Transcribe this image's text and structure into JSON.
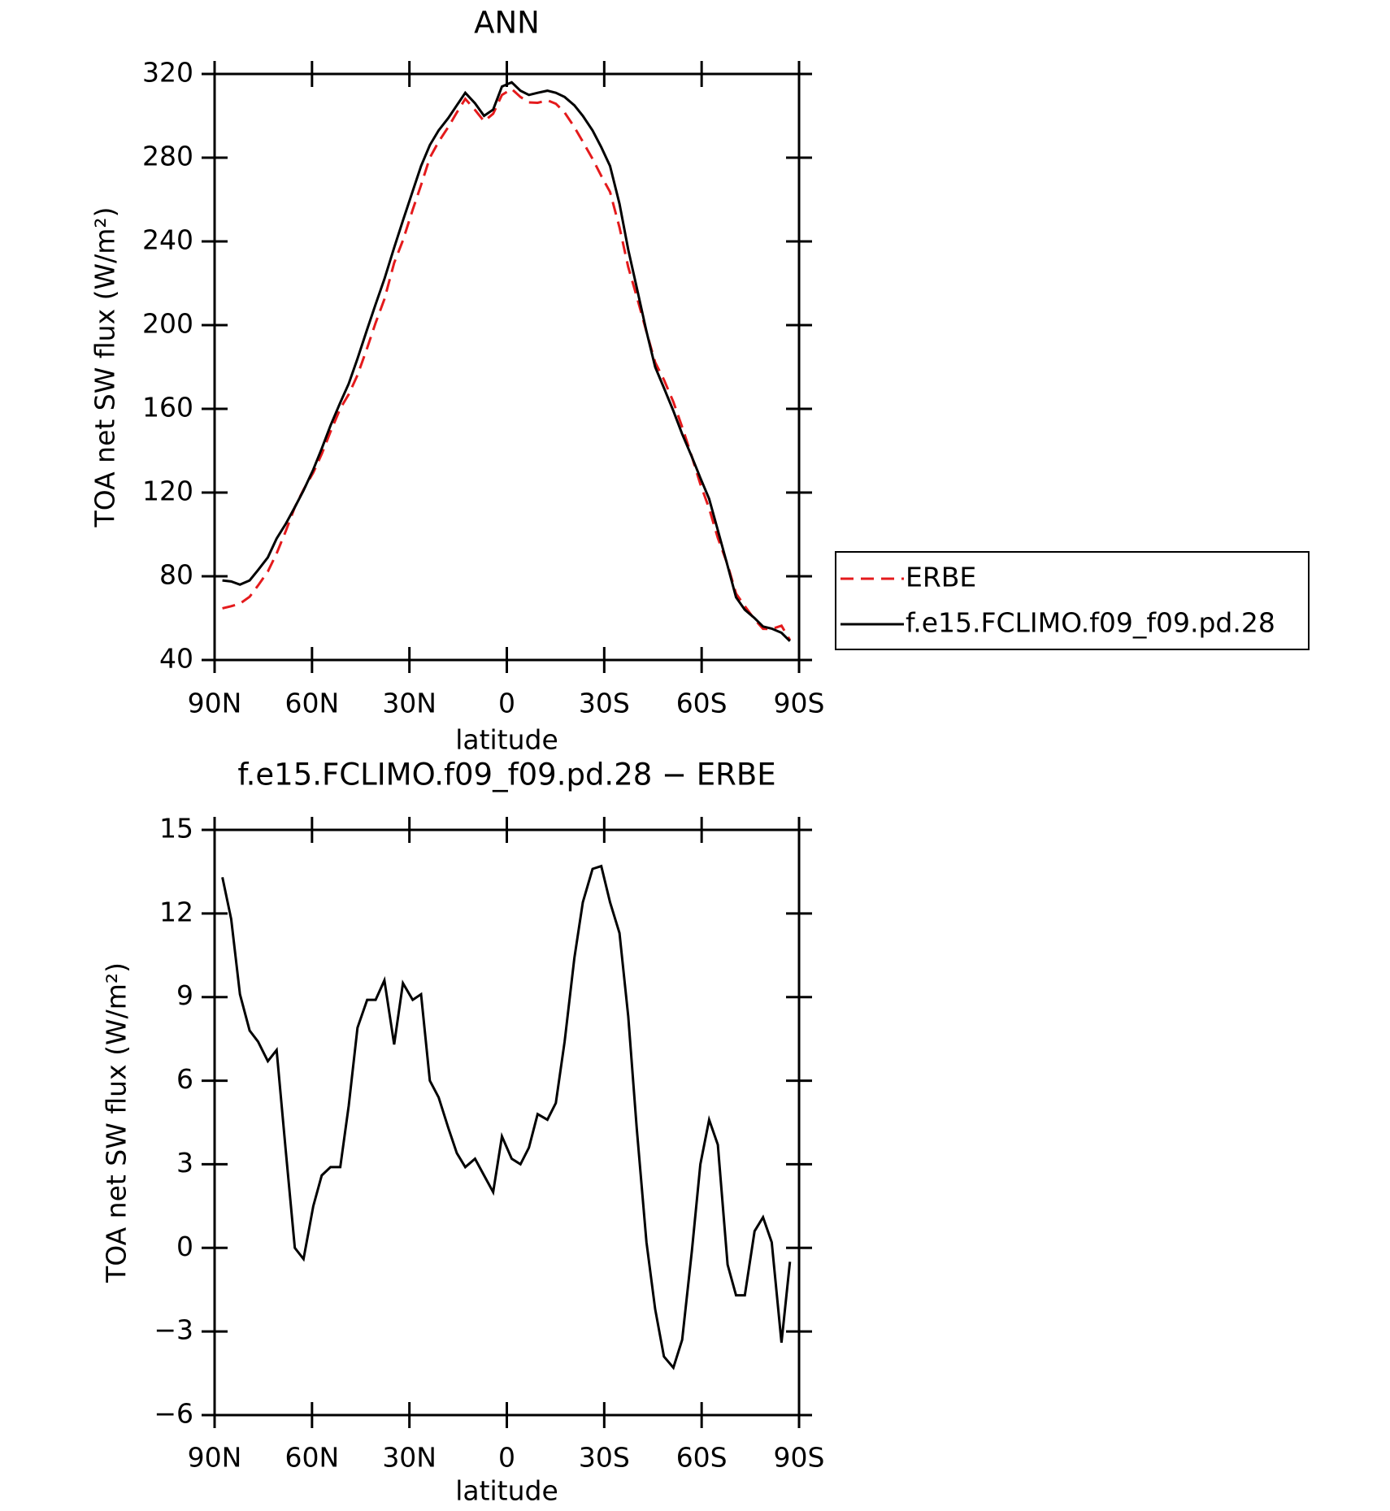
{
  "chart_data": [
    {
      "type": "line",
      "title": "ANN",
      "x": [
        87.6,
        84.9,
        82.2,
        79.2,
        76.6,
        73.6,
        70.9,
        68.1,
        65.3,
        62.6,
        59.6,
        57,
        54.3,
        51.3,
        48.7,
        46,
        43,
        40.4,
        37.7,
        34.7,
        32,
        29,
        26.4,
        23.7,
        21,
        18,
        15.4,
        12.8,
        9.8,
        7,
        4.2,
        1.5,
        -1.5,
        -4.2,
        -6.8,
        -9.5,
        -12.5,
        -15.1,
        -17.8,
        -20.8,
        -23.4,
        -26.4,
        -29.1,
        -31.8,
        -34.7,
        -37.4,
        -40,
        -43,
        -45.7,
        -48.4,
        -51.3,
        -54,
        -57,
        -59.6,
        -62.3,
        -65,
        -68,
        -70.6,
        -73.3,
        -76.3,
        -78.9,
        -81.6,
        -84.6,
        -87.2
      ],
      "series": [
        {
          "name": "ERBE",
          "color": "#e41a1c",
          "linestyle": "dashed",
          "values": [
            64.7,
            65.7,
            66.9,
            70.2,
            75.6,
            82.3,
            90.9,
            101.5,
            113,
            121.4,
            129.5,
            138.4,
            149.1,
            160.1,
            166.9,
            176.1,
            189.1,
            201.1,
            212.4,
            229.7,
            240.5,
            255.1,
            266.9,
            280,
            287.6,
            294.7,
            301.6,
            308.1,
            302.8,
            297.4,
            301,
            310,
            312.8,
            309,
            306.4,
            306.2,
            307.4,
            305.8,
            301.6,
            294.6,
            287.6,
            279.4,
            271.3,
            263.6,
            246.7,
            227.7,
            213.7,
            196.8,
            182.2,
            173.9,
            163.3,
            151.3,
            137.1,
            124,
            112.4,
            98.3,
            85.6,
            71.7,
            65.7,
            59.4,
            54.9,
            54.8,
            56.4,
            49.5
          ]
        },
        {
          "name": "f.e15.FCLIMO.f09_f09.pd.28",
          "color": "#000000",
          "linestyle": "solid",
          "values": [
            78,
            77.5,
            76,
            78,
            83,
            89,
            98,
            105,
            113,
            121,
            131,
            141,
            152,
            163,
            172,
            184,
            198,
            210,
            222,
            237,
            250,
            264,
            276,
            286,
            293,
            299,
            305,
            311,
            306,
            300,
            303,
            314,
            316,
            312,
            310,
            311,
            312,
            311,
            309,
            305,
            300,
            293,
            285,
            276,
            258,
            236,
            218,
            197,
            180,
            170,
            159,
            148,
            137,
            127,
            117,
            102,
            85,
            70,
            64,
            60,
            56,
            55,
            53,
            49
          ]
        }
      ],
      "xlim": [
        90,
        -90
      ],
      "xticks": [
        {
          "value": 90,
          "label": "90N"
        },
        {
          "value": 60,
          "label": "60N"
        },
        {
          "value": 30,
          "label": "30N"
        },
        0,
        {
          "value": -30,
          "label": "30S"
        },
        {
          "value": -60,
          "label": "60S"
        },
        {
          "value": -90,
          "label": "90S"
        }
      ],
      "ylim": [
        40,
        320
      ],
      "yticks": [
        40,
        80,
        120,
        160,
        200,
        240,
        280,
        320
      ],
      "xlabel": "latitude",
      "ylabel": "TOA net SW flux (W/m²)",
      "legend": "right"
    },
    {
      "type": "line",
      "title": "f.e15.FCLIMO.f09_f09.pd.28 − ERBE",
      "x": [
        87.6,
        84.9,
        82.2,
        79.2,
        76.6,
        73.6,
        70.9,
        68.1,
        65.3,
        62.6,
        59.6,
        57,
        54.3,
        51.3,
        48.7,
        46,
        43,
        40.4,
        37.7,
        34.7,
        32,
        29,
        26.4,
        23.7,
        21,
        18,
        15.4,
        12.8,
        9.8,
        7,
        4.2,
        1.5,
        -1.5,
        -4.2,
        -6.8,
        -9.5,
        -12.5,
        -15.1,
        -17.8,
        -20.8,
        -23.4,
        -26.4,
        -29.1,
        -31.8,
        -34.7,
        -37.4,
        -40,
        -43,
        -45.7,
        -48.4,
        -51.3,
        -54,
        -57,
        -59.6,
        -62.3,
        -65,
        -68,
        -70.6,
        -73.3,
        -76.3,
        -78.9,
        -81.6,
        -84.6,
        -87.2
      ],
      "values": [
        13.3,
        11.8,
        9.1,
        7.8,
        7.4,
        6.7,
        7.1,
        3.5,
        0,
        -0.4,
        1.5,
        2.6,
        2.9,
        2.9,
        5.1,
        7.9,
        8.9,
        8.9,
        9.6,
        7.3,
        9.5,
        8.9,
        9.1,
        6.0,
        5.4,
        4.3,
        3.4,
        2.9,
        3.2,
        2.6,
        2.0,
        4.0,
        3.2,
        3.0,
        3.6,
        4.8,
        4.6,
        5.2,
        7.4,
        10.4,
        12.4,
        13.6,
        13.7,
        12.4,
        11.3,
        8.3,
        4.3,
        0.2,
        -2.2,
        -3.9,
        -4.3,
        -3.3,
        -0.1,
        3.0,
        4.6,
        3.7,
        -0.6,
        -1.7,
        -1.7,
        0.6,
        1.1,
        0.2,
        -3.4,
        -0.5
      ],
      "color": "#000000",
      "xlim": [
        90,
        -90
      ],
      "xticks": [
        {
          "value": 90,
          "label": "90N"
        },
        {
          "value": 60,
          "label": "60N"
        },
        {
          "value": 30,
          "label": "30N"
        },
        0,
        {
          "value": -30,
          "label": "30S"
        },
        {
          "value": -60,
          "label": "60S"
        },
        {
          "value": -90,
          "label": "90S"
        }
      ],
      "ylim": [
        -6,
        15
      ],
      "yticks": [
        {
          "value": -6,
          "label": "−6"
        },
        {
          "value": -3,
          "label": "−3"
        },
        0,
        3,
        6,
        9,
        12,
        15
      ],
      "xlabel": "latitude",
      "ylabel": "TOA net SW flux (W/m²)"
    }
  ]
}
